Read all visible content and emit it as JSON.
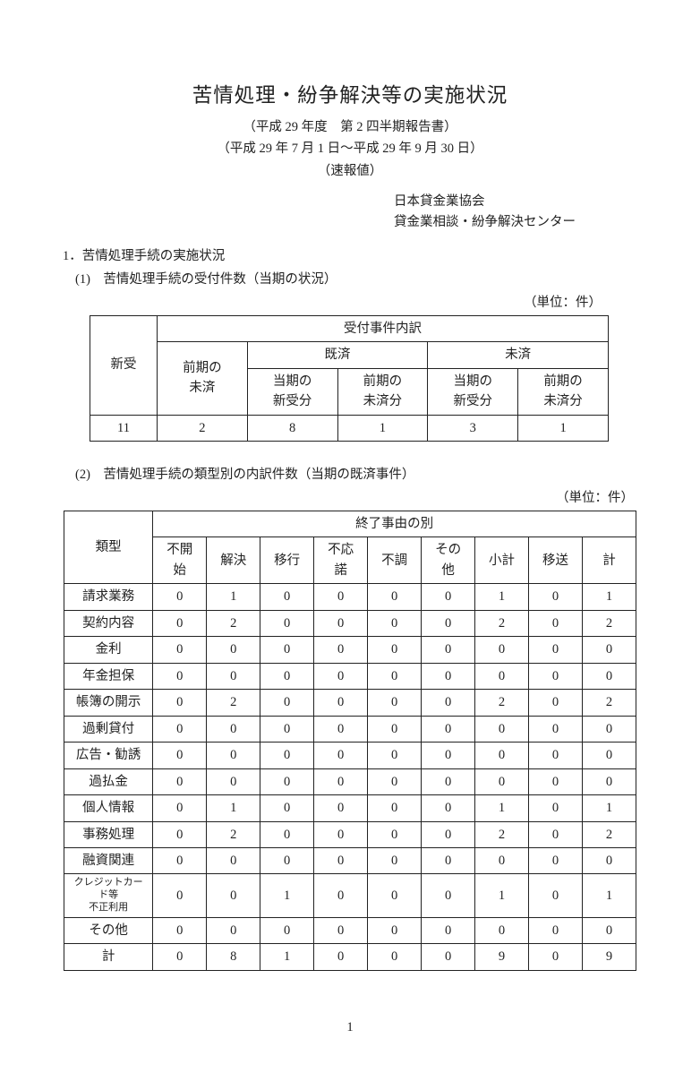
{
  "title": {
    "main": "苦情処理・紛争解決等の実施状況",
    "sub1": "（平成 29 年度　第 2 四半期報告書）",
    "sub2": "（平成 29 年 7 月 1 日～平成 29 年 9 月 30 日）",
    "sub3": "（速報値）"
  },
  "org": {
    "line1": "日本貸金業協会",
    "line2": "貸金業相談・紛争解決センター"
  },
  "section1": {
    "head": "1．苦情処理手続の実施状況",
    "sub1": {
      "head": "(1)　苦情処理手続の受付件数（当期の状況）",
      "unit": "（単位：件）",
      "table": {
        "h_breakdown": "受付事件内訳",
        "h_new": "新受",
        "h_prev_unsettled": "前期の\n未済",
        "h_settled": "既済",
        "h_unsettled": "未済",
        "h_cur_new": "当期の\n新受分",
        "h_prev_us": "前期の\n未済分",
        "rows": [
          [
            "11",
            "2",
            "8",
            "1",
            "3",
            "1"
          ]
        ]
      }
    },
    "sub2": {
      "head": "(2)　苦情処理手続の類型別の内訳件数（当期の既済事件）",
      "unit": "（単位：件）",
      "table": {
        "h_type": "類型",
        "h_reason_group": "終了事由の別",
        "cols": [
          "不開\n始",
          "解決",
          "移行",
          "不応\n諾",
          "不調",
          "その\n他",
          "小計",
          "移送",
          "計"
        ],
        "rows": [
          {
            "label": "請求業務",
            "v": [
              "0",
              "1",
              "0",
              "0",
              "0",
              "0",
              "1",
              "0",
              "1"
            ]
          },
          {
            "label": "契約内容",
            "v": [
              "0",
              "2",
              "0",
              "0",
              "0",
              "0",
              "2",
              "0",
              "2"
            ]
          },
          {
            "label": "金利",
            "v": [
              "0",
              "0",
              "0",
              "0",
              "0",
              "0",
              "0",
              "0",
              "0"
            ]
          },
          {
            "label": "年金担保",
            "v": [
              "0",
              "0",
              "0",
              "0",
              "0",
              "0",
              "0",
              "0",
              "0"
            ]
          },
          {
            "label": "帳簿の開示",
            "v": [
              "0",
              "2",
              "0",
              "0",
              "0",
              "0",
              "2",
              "0",
              "2"
            ]
          },
          {
            "label": "過剰貸付",
            "v": [
              "0",
              "0",
              "0",
              "0",
              "0",
              "0",
              "0",
              "0",
              "0"
            ]
          },
          {
            "label": "広告・勧誘",
            "v": [
              "0",
              "0",
              "0",
              "0",
              "0",
              "0",
              "0",
              "0",
              "0"
            ]
          },
          {
            "label": "過払金",
            "v": [
              "0",
              "0",
              "0",
              "0",
              "0",
              "0",
              "0",
              "0",
              "0"
            ]
          },
          {
            "label": "個人情報",
            "v": [
              "0",
              "1",
              "0",
              "0",
              "0",
              "0",
              "1",
              "0",
              "1"
            ]
          },
          {
            "label": "事務処理",
            "v": [
              "0",
              "2",
              "0",
              "0",
              "0",
              "0",
              "2",
              "0",
              "2"
            ]
          },
          {
            "label": "融資関連",
            "v": [
              "0",
              "0",
              "0",
              "0",
              "0",
              "0",
              "0",
              "0",
              "0"
            ]
          },
          {
            "label": "クレジットカード等\n不正利用",
            "small": true,
            "v": [
              "0",
              "0",
              "1",
              "0",
              "0",
              "0",
              "1",
              "0",
              "1"
            ]
          },
          {
            "label": "その他",
            "v": [
              "0",
              "0",
              "0",
              "0",
              "0",
              "0",
              "0",
              "0",
              "0"
            ]
          },
          {
            "label": "計",
            "v": [
              "0",
              "8",
              "1",
              "0",
              "0",
              "0",
              "9",
              "0",
              "9"
            ]
          }
        ]
      }
    }
  },
  "page": "1",
  "colors": {
    "text": "#222222",
    "border": "#222222",
    "background": "#ffffff"
  },
  "fontsize": {
    "title": 22.5,
    "body": 14.5,
    "small": 11
  }
}
